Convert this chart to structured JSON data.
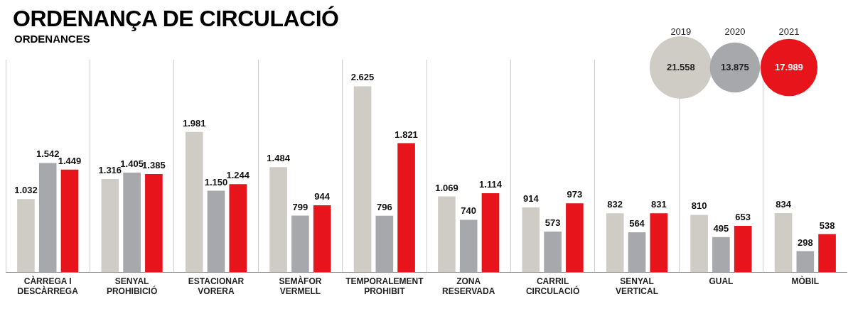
{
  "chart_data": [
    {
      "type": "bar",
      "title": "ORDENANÇA DE CIRCULACIÓ",
      "subtitle": "ORDENANCES",
      "categories": [
        "CÀRREGA I DESCÀRREGA",
        "SENYAL PROHIBICIÓ",
        "ESTACIONAR VORERA",
        "SEMÀFOR VERMELL",
        "TEMPORALEMENT PROHIBIT",
        "ZONA RESERVADA",
        "CARRIL CIRCULACIÓ",
        "SENYAL VERTICAL",
        "GUAL",
        "MÒBIL"
      ],
      "series": [
        {
          "color": "#cfccc6",
          "values": [
            1032,
            1316,
            1981,
            1484,
            2625,
            1069,
            914,
            832,
            810,
            834
          ],
          "value_labels": [
            "1.032",
            "1.316",
            "1.981",
            "1.484",
            "2.625",
            "1.069",
            "914",
            "832",
            "810",
            "834"
          ]
        },
        {
          "color": "#a6a8ab",
          "values": [
            1542,
            1405,
            1150,
            799,
            796,
            740,
            573,
            564,
            495,
            298
          ],
          "value_labels": [
            "1.542",
            "1.405",
            "1.150",
            "799",
            "796",
            "740",
            "573",
            "564",
            "495",
            "298"
          ]
        },
        {
          "color": "#e8141b",
          "values": [
            1449,
            1385,
            1244,
            944,
            1821,
            1114,
            973,
            831,
            653,
            538
          ],
          "value_labels": [
            "1.449",
            "1.385",
            "1.244",
            "944",
            "1.821",
            "1.114",
            "973",
            "831",
            "653",
            "538"
          ]
        }
      ],
      "grid": "x"
    },
    {
      "type": "other",
      "categories": [
        "2019",
        "2020",
        "2021"
      ],
      "values": [
        21558,
        13875,
        17989
      ],
      "colors": [
        "#cfccc6",
        "#a6a8ab",
        "#e8141b"
      ],
      "value_labels": [
        "21.558",
        "13.875",
        "17.989"
      ]
    }
  ]
}
